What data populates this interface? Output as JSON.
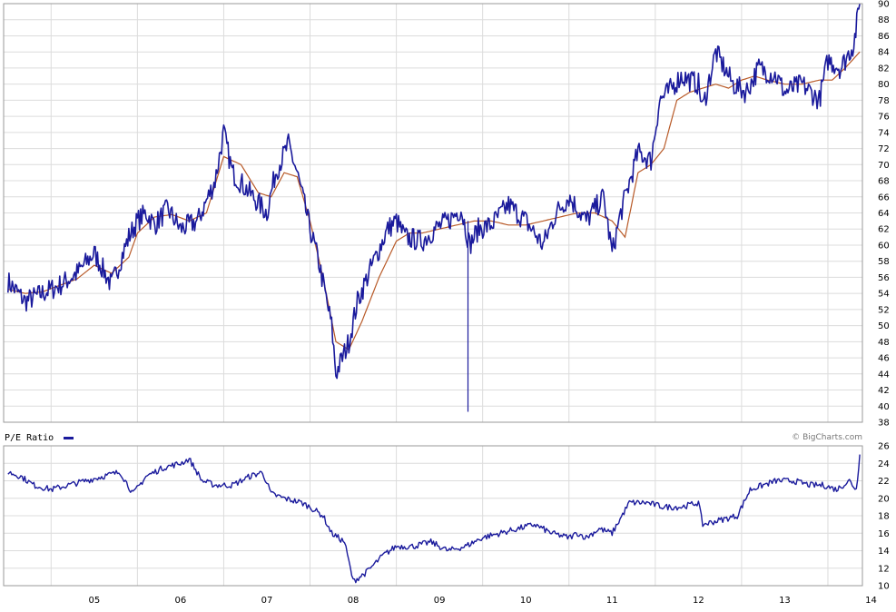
{
  "chart_data": [
    {
      "type": "line",
      "title": "",
      "xlabel": "",
      "ylabel": "",
      "ylim": [
        38,
        90
      ],
      "y_ticks": [
        38,
        40,
        42,
        44,
        46,
        48,
        50,
        52,
        54,
        56,
        58,
        60,
        62,
        64,
        66,
        68,
        70,
        72,
        74,
        76,
        78,
        80,
        82,
        84,
        86,
        88,
        90
      ],
      "x_ticks": [
        "05",
        "06",
        "07",
        "08",
        "09",
        "10",
        "11",
        "12",
        "13",
        "14"
      ],
      "grid": true,
      "colors": {
        "price": "#1a1a9c",
        "moving_average": "#b85a28"
      },
      "series": [
        {
          "role": "price",
          "x": [
            2004.5,
            2004.7,
            2004.9,
            2005.1,
            2005.3,
            2005.5,
            2005.7,
            2005.9,
            2006.0,
            2006.1,
            2006.2,
            2006.35,
            2006.5,
            2006.7,
            2006.9,
            2007.0,
            2007.1,
            2007.3,
            2007.5,
            2007.6,
            2007.75,
            2007.85,
            2008.0,
            2008.1,
            2008.25,
            2008.3,
            2008.45,
            2008.55,
            2008.7,
            2008.9,
            2009.0,
            2009.1,
            2009.3,
            2009.45,
            2009.6,
            2009.75,
            2009.85,
            2009.95,
            2010.1,
            2010.3,
            2010.5,
            2010.7,
            2010.85,
            2011.0,
            2011.2,
            2011.4,
            2011.5,
            2011.6,
            2011.8,
            2011.95,
            2012.05,
            2012.15,
            2012.3,
            2012.5,
            2012.55,
            2012.7,
            2012.9,
            2013.05,
            2013.2,
            2013.4,
            2013.5,
            2013.7,
            2013.9,
            2014.0,
            2014.15,
            2014.3,
            2014.37
          ],
          "y": [
            55.5,
            53,
            54,
            55,
            56.5,
            59,
            55,
            61,
            63,
            64,
            62.5,
            64.5,
            62,
            63,
            68,
            74,
            69,
            66.5,
            64,
            69,
            72.5,
            69,
            62,
            58,
            50,
            44,
            48,
            53,
            57,
            62,
            63,
            61,
            60.5,
            62,
            63,
            64.5,
            60,
            62,
            62.5,
            65,
            63,
            60,
            64,
            66,
            63,
            66,
            59,
            64,
            71.5,
            70.5,
            78,
            79,
            81,
            80,
            77,
            84,
            80,
            79,
            82,
            81,
            79,
            80,
            78,
            83,
            82,
            85,
            90
          ]
        },
        {
          "role": "moving_average",
          "x": [
            2004.5,
            2004.7,
            2004.9,
            2005.1,
            2005.3,
            2005.5,
            2005.7,
            2005.9,
            2006.0,
            2006.2,
            2006.4,
            2006.6,
            2006.8,
            2007.0,
            2007.2,
            2007.4,
            2007.55,
            2007.7,
            2007.85,
            2008.0,
            2008.15,
            2008.3,
            2008.45,
            2008.6,
            2008.8,
            2009.0,
            2009.15,
            2009.3,
            2009.5,
            2009.7,
            2009.9,
            2010.1,
            2010.3,
            2010.5,
            2010.7,
            2010.9,
            2011.1,
            2011.3,
            2011.5,
            2011.65,
            2011.8,
            2011.95,
            2012.1,
            2012.25,
            2012.4,
            2012.55,
            2012.7,
            2012.85,
            2013.0,
            2013.15,
            2013.3,
            2013.5,
            2013.7,
            2013.9,
            2014.05,
            2014.2,
            2014.37
          ],
          "y": [
            54.5,
            54,
            54.2,
            55,
            55.8,
            57.5,
            56.5,
            58.5,
            61.5,
            63.5,
            63.8,
            63,
            64,
            71,
            70,
            66.5,
            66,
            69,
            68.5,
            63,
            56,
            48,
            47,
            50.5,
            56,
            60.5,
            61.5,
            61.5,
            62,
            62.5,
            63,
            63,
            62.5,
            62.5,
            63,
            63.5,
            64,
            64,
            63,
            61,
            69,
            70,
            72,
            78,
            79,
            79.5,
            80,
            79.5,
            80.5,
            81,
            80.5,
            80,
            80,
            80.5,
            80.5,
            82,
            84
          ]
        }
      ]
    },
    {
      "type": "line",
      "title": "",
      "legend": "P/E Ratio",
      "legend_placement": "top-left",
      "xlabel": "",
      "ylabel": "",
      "ylim": [
        10,
        26
      ],
      "y_ticks": [
        10,
        12,
        14,
        16,
        18,
        20,
        22,
        24,
        26
      ],
      "x_ticks": [
        "05",
        "06",
        "07",
        "08",
        "09",
        "10",
        "11",
        "12",
        "13",
        "14"
      ],
      "grid": true,
      "colors": {
        "line": "#1a1a9c"
      },
      "series": [
        {
          "name": "P/E Ratio",
          "x": [
            2004.5,
            2004.65,
            2004.8,
            2005.0,
            2005.2,
            2005.4,
            2005.6,
            2005.8,
            2005.95,
            2006.1,
            2006.3,
            2006.5,
            2006.6,
            2006.75,
            2006.9,
            2007.1,
            2007.3,
            2007.45,
            2007.55,
            2007.7,
            2007.9,
            2008.0,
            2008.15,
            2008.25,
            2008.4,
            2008.5,
            2008.65,
            2008.75,
            2008.85,
            2009.0,
            2009.2,
            2009.4,
            2009.6,
            2009.8,
            2010.0,
            2010.2,
            2010.4,
            2010.6,
            2010.8,
            2011.0,
            2011.1,
            2011.2,
            2011.35,
            2011.5,
            2011.7,
            2011.9,
            2012.1,
            2012.3,
            2012.5,
            2012.55,
            2012.75,
            2012.95,
            2013.1,
            2013.25,
            2013.4,
            2013.6,
            2013.8,
            2013.95,
            2014.1,
            2014.25,
            2014.33,
            2014.37
          ],
          "y": [
            23,
            22.5,
            21.5,
            21,
            21.5,
            22,
            22.5,
            23,
            20.5,
            22.5,
            23.5,
            24,
            24.5,
            22,
            21.5,
            21.5,
            22.5,
            23,
            20.5,
            20,
            19.5,
            19,
            18,
            16,
            15,
            10.5,
            11.5,
            12.5,
            13.5,
            14.5,
            14.5,
            15,
            14,
            14.5,
            15.5,
            16,
            16.5,
            17,
            16,
            15.5,
            16,
            15.5,
            16.5,
            16,
            19.5,
            19.5,
            19,
            19,
            19.5,
            17,
            17.5,
            18,
            21,
            21.5,
            22,
            22,
            21.5,
            21.5,
            21,
            22,
            21,
            25
          ]
        }
      ]
    }
  ],
  "watermark": "© BigCharts.com"
}
